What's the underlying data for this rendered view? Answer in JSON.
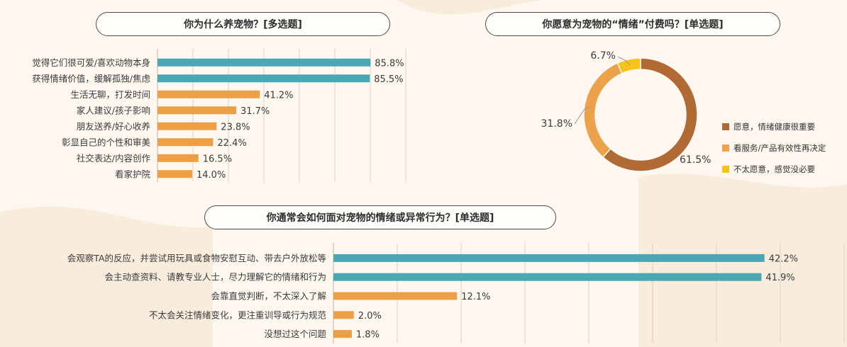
{
  "colors": {
    "teal": "#4aa7b4",
    "orange": "#ec9f45",
    "brown": "#b06a33",
    "light_orange": "#eca24a",
    "yellow": "#f6c418",
    "grid": "#d9d2c8",
    "text": "#3b3b3b"
  },
  "chart_data": [
    {
      "type": "bar",
      "orientation": "horizontal",
      "title": "你为什么养宠物？[多选题]",
      "categories": [
        "觉得它们很可爱/喜欢动物本身",
        "获得情绪价值，缓解孤独/焦虑",
        "生活无聊，打发时间",
        "家人建议/孩子影响",
        "朋友送养/好心收养",
        "彰显自己的个性和审美",
        "社交表达/内容创作",
        "看家护院"
      ],
      "values": [
        85.8,
        85.5,
        41.2,
        31.7,
        23.8,
        22.4,
        16.5,
        14.0
      ],
      "labels": [
        "85.8%",
        "85.5%",
        "41.2%",
        "31.7%",
        "23.8%",
        "22.4%",
        "16.5%",
        "14.0%"
      ],
      "highlight_count": 2,
      "unit": "%",
      "xlim": [
        0,
        100
      ],
      "grid": true
    },
    {
      "type": "pie",
      "style": "donut",
      "title": "你愿意为宠物的“情绪”付费吗？[单选题]",
      "categories": [
        "愿意，情绪健康很重要",
        "看服务/产品有效性再决定",
        "不太愿意，感觉没必要"
      ],
      "values": [
        61.5,
        31.8,
        6.7
      ],
      "labels": [
        "61.5%",
        "31.8%",
        "6.7%"
      ],
      "colors": [
        "#b06a33",
        "#eca24a",
        "#f6c418"
      ],
      "legend": "right"
    },
    {
      "type": "bar",
      "orientation": "horizontal",
      "title": "你通常会如何面对宠物的情绪或异常行为？[单选题]",
      "categories": [
        "会观察TA的反应，并尝试用玩具或食物安慰互动、带去户外放松等",
        "会主动查资料、请教专业人士，尽力理解它的情绪和行为",
        "会靠直觉判断，不太深入了解",
        "不太会关注情绪变化，更注重训导或行为规范",
        "没想过这个问题"
      ],
      "values": [
        42.2,
        41.9,
        12.1,
        2.0,
        1.8
      ],
      "labels": [
        "42.2%",
        "41.9%",
        "12.1%",
        "2.0%",
        "1.8%"
      ],
      "highlight_count": 2,
      "unit": "%",
      "xlim": [
        0,
        50
      ],
      "grid": true
    }
  ]
}
